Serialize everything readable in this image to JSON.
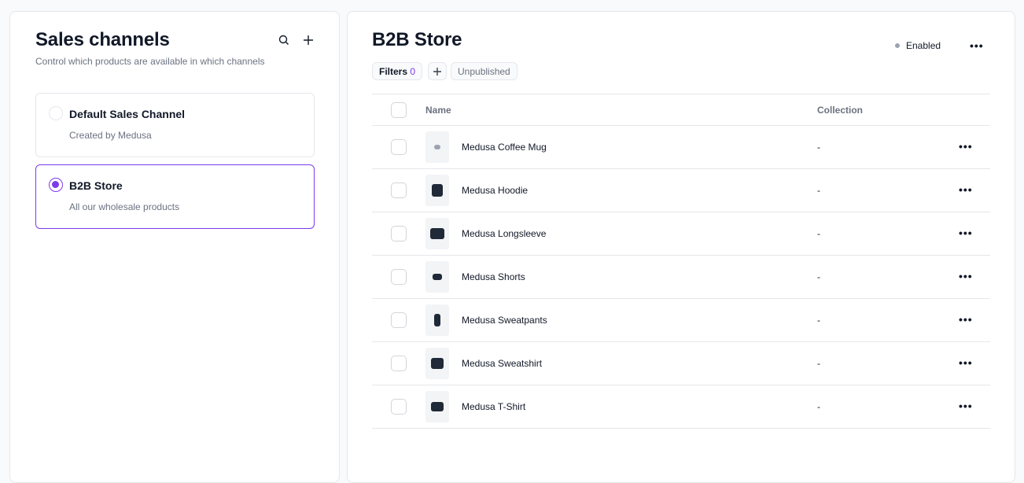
{
  "left": {
    "title": "Sales channels",
    "subtitle": "Control which products are available in which channels",
    "channels": [
      {
        "name": "Default Sales Channel",
        "description": "Created by Medusa",
        "selected": false
      },
      {
        "name": "B2B Store",
        "description": "All our wholesale products",
        "selected": true
      }
    ]
  },
  "right": {
    "title": "B2B Store",
    "status": "Enabled",
    "filters_label": "Filters",
    "filters_count": "0",
    "filter_chip": "Unpublished",
    "columns": {
      "name": "Name",
      "collection": "Collection"
    },
    "products": [
      {
        "name": "Medusa Coffee Mug",
        "collection": "-"
      },
      {
        "name": "Medusa Hoodie",
        "collection": "-"
      },
      {
        "name": "Medusa Longsleeve",
        "collection": "-"
      },
      {
        "name": "Medusa Shorts",
        "collection": "-"
      },
      {
        "name": "Medusa Sweatpants",
        "collection": "-"
      },
      {
        "name": "Medusa Sweatshirt",
        "collection": "-"
      },
      {
        "name": "Medusa T-Shirt",
        "collection": "-"
      }
    ]
  },
  "colors": {
    "accent": "#7c3aed",
    "border": "#e5e7eb",
    "status_dot": "#9ca3af"
  }
}
